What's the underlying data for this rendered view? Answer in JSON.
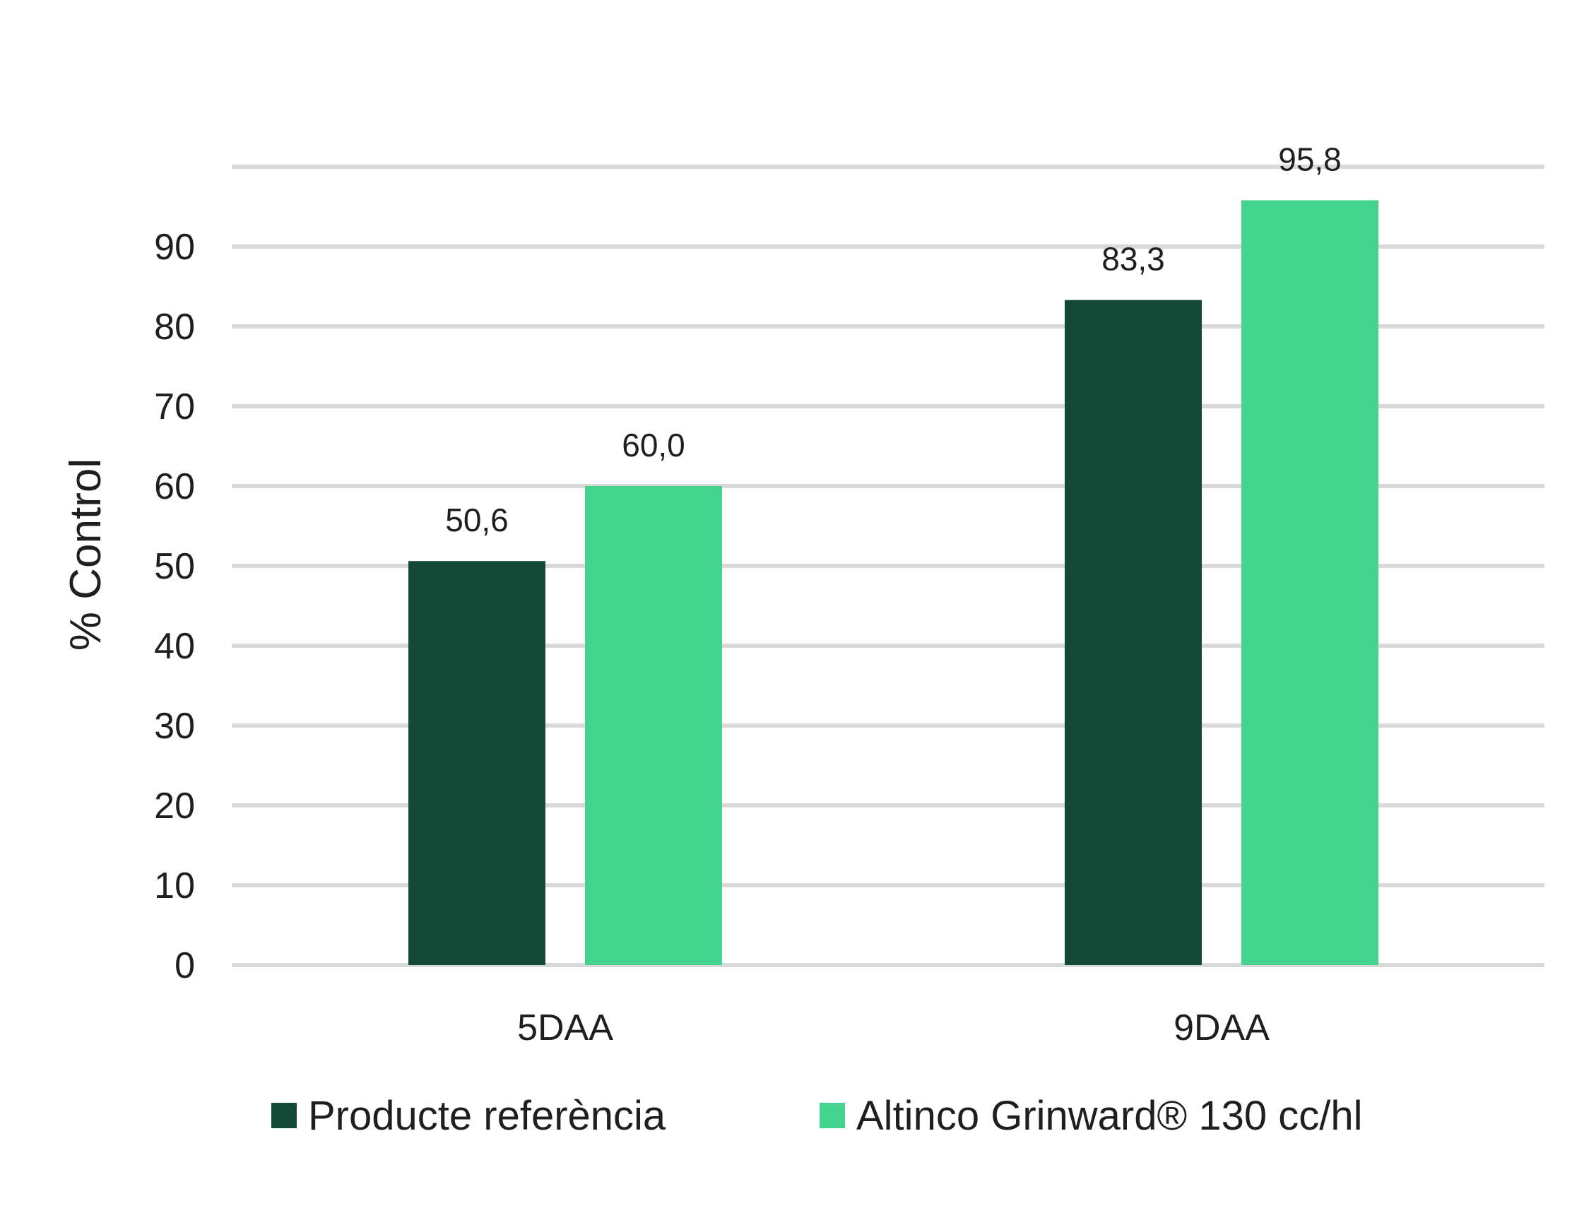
{
  "chart_data": {
    "type": "bar",
    "categories": [
      "5DAA",
      "9DAA"
    ],
    "series": [
      {
        "name": "Producte referència",
        "color": "#134a37",
        "values": [
          50.6,
          83.3
        ],
        "labels": [
          "50,6",
          "83,3"
        ]
      },
      {
        "name": "Altinco Grinward® 130 cc/hl",
        "color": "#44d48e",
        "values": [
          60.0,
          95.8
        ],
        "labels": [
          "60,0",
          "95,8"
        ]
      }
    ],
    "ylabel": "% Control",
    "xlabel": "",
    "ylim": [
      0,
      100
    ],
    "yticks": [
      0,
      10,
      20,
      30,
      40,
      50,
      60,
      70,
      80,
      90
    ],
    "grid": true,
    "grid_color": "#d9d9d9",
    "legend": "bottom"
  }
}
